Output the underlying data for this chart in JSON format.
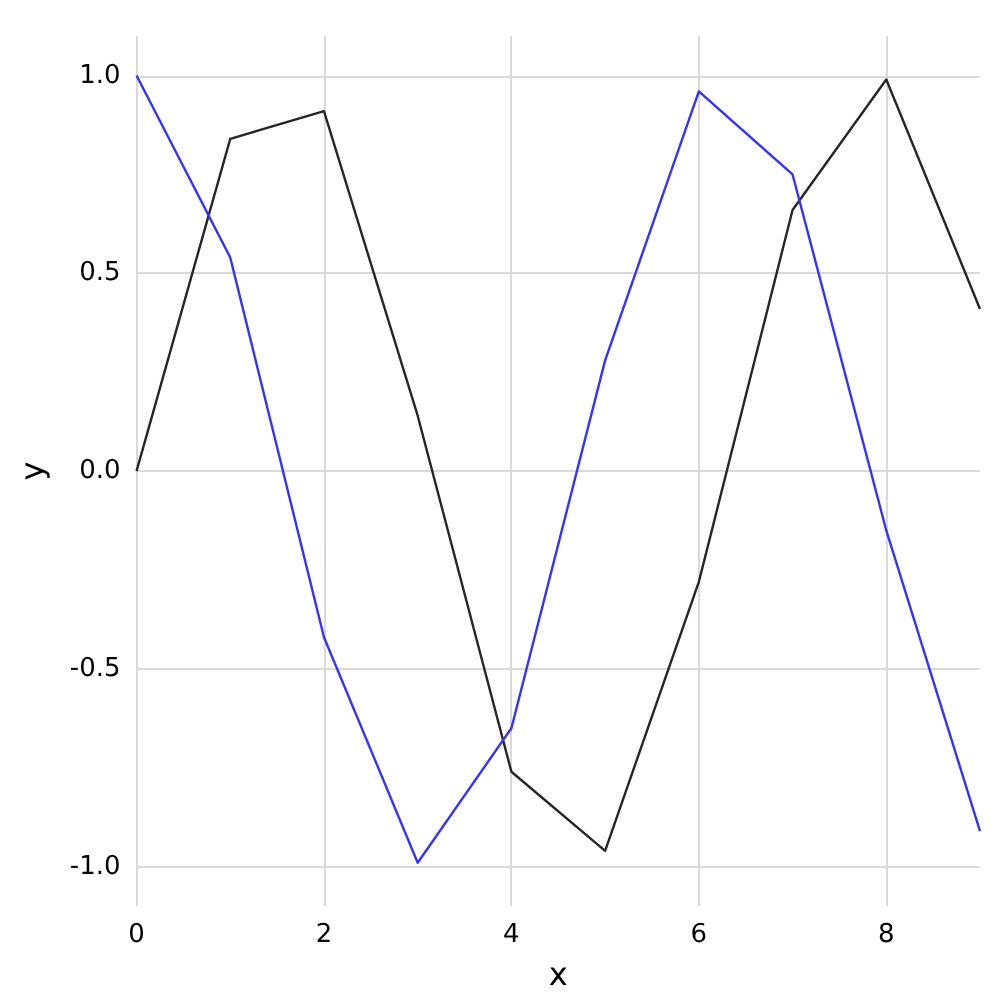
{
  "chart_data": {
    "type": "line",
    "xlabel": "x",
    "ylabel": "y",
    "x": [
      0,
      1,
      2,
      3,
      4,
      5,
      6,
      7,
      8,
      9
    ],
    "series": [
      {
        "color": "#262626",
        "values": [
          0,
          0.84,
          0.91,
          0.14,
          -0.76,
          -0.96,
          -0.28,
          0.66,
          0.99,
          0.41
        ]
      },
      {
        "color": "#3333ff",
        "values": [
          1,
          0.54,
          -0.42,
          -0.99,
          -0.65,
          0.28,
          0.96,
          0.75,
          -0.15,
          -0.91
        ]
      }
    ],
    "xlim": [
      0,
      9
    ],
    "xticks": [
      0,
      2,
      4,
      6,
      8
    ],
    "ylim": [
      -1.1,
      1.1
    ],
    "yticks": [
      {
        "value": -1,
        "label": "-1.0"
      },
      {
        "value": -0.5,
        "label": "-0.5"
      },
      {
        "value": 0,
        "label": "0.0"
      },
      {
        "value": 0.5,
        "label": "0.5"
      },
      {
        "value": 1,
        "label": "1.0"
      }
    ],
    "grid": true,
    "marker": "none",
    "line_style": "solid"
  }
}
